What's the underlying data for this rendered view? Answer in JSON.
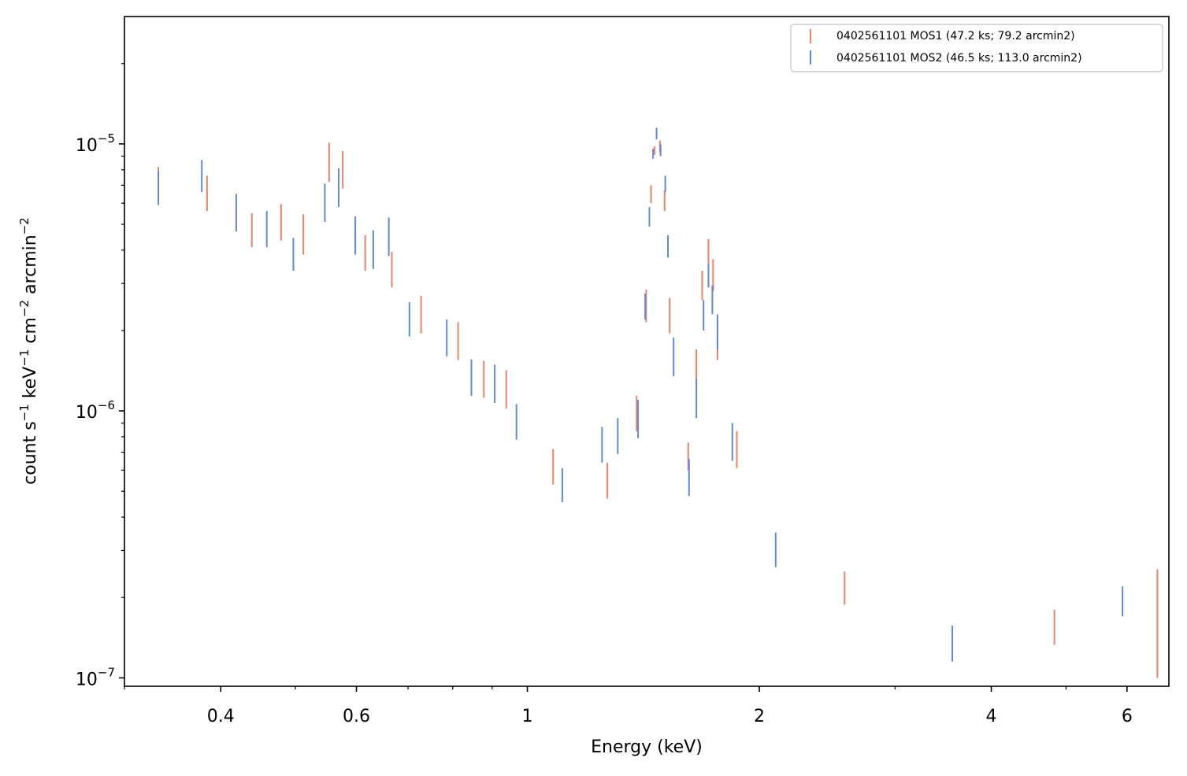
{
  "chart_data": {
    "type": "scatter",
    "title": "",
    "xlabel": "Energy (keV)",
    "ylabel_parts": {
      "p1": "count s",
      "e1": "−1",
      "p2": " keV",
      "e2": "−1",
      "p3": " cm",
      "e3": "−2",
      "p4": " arcmin",
      "e4": "−2"
    },
    "xscale": "log",
    "yscale": "log",
    "xlim": [
      0.3,
      6.8
    ],
    "ylim": [
      9.3e-08,
      3e-05
    ],
    "xticks": [
      {
        "value": 0.4,
        "label": "0.4"
      },
      {
        "value": 0.6,
        "label": "0.6"
      },
      {
        "value": 1,
        "label": "1"
      },
      {
        "value": 2,
        "label": "2"
      },
      {
        "value": 4,
        "label": "4"
      },
      {
        "value": 6,
        "label": "6"
      }
    ],
    "yticks": [
      {
        "value": 1e-07,
        "base": "10",
        "exp": "−7"
      },
      {
        "value": 1e-06,
        "base": "10",
        "exp": "−6"
      },
      {
        "value": 1e-05,
        "base": "10",
        "exp": "−5"
      }
    ],
    "legend": {
      "placement": "upper right"
    },
    "series": [
      {
        "name": "0402561101 MOS1 (47.2 ks; 79.2 arcmin2)",
        "color": "#f08068",
        "points": [
          {
            "x": 0.332,
            "lo": 6.1e-06,
            "hi": 8.2e-06
          },
          {
            "x": 0.384,
            "lo": 5.6e-06,
            "hi": 7.6e-06
          },
          {
            "x": 0.439,
            "lo": 4.1e-06,
            "hi": 5.5e-06
          },
          {
            "x": 0.479,
            "lo": 4.35e-06,
            "hi": 5.95e-06
          },
          {
            "x": 0.512,
            "lo": 3.85e-06,
            "hi": 5.45e-06
          },
          {
            "x": 0.553,
            "lo": 7.2e-06,
            "hi": 1.01e-05
          },
          {
            "x": 0.576,
            "lo": 6.8e-06,
            "hi": 9.4e-06
          },
          {
            "x": 0.616,
            "lo": 3.35e-06,
            "hi": 4.55e-06
          },
          {
            "x": 0.667,
            "lo": 2.9e-06,
            "hi": 3.95e-06
          },
          {
            "x": 0.728,
            "lo": 1.95e-06,
            "hi": 2.7e-06
          },
          {
            "x": 0.813,
            "lo": 1.55e-06,
            "hi": 2.15e-06
          },
          {
            "x": 0.878,
            "lo": 1.12e-06,
            "hi": 1.54e-06
          },
          {
            "x": 0.939,
            "lo": 1.02e-06,
            "hi": 1.42e-06
          },
          {
            "x": 1.08,
            "lo": 5.3e-07,
            "hi": 7.2e-07
          },
          {
            "x": 1.27,
            "lo": 4.7e-07,
            "hi": 6.4e-07
          },
          {
            "x": 1.386,
            "lo": 8.4e-07,
            "hi": 1.14e-06
          },
          {
            "x": 1.426,
            "lo": 2.15e-06,
            "hi": 2.85e-06
          },
          {
            "x": 1.447,
            "lo": 6e-06,
            "hi": 7e-06
          },
          {
            "x": 1.463,
            "lo": 9.1e-06,
            "hi": 9.8e-06
          },
          {
            "x": 1.486,
            "lo": 9.3e-06,
            "hi": 1.03e-05
          },
          {
            "x": 1.507,
            "lo": 5.6e-06,
            "hi": 6.7e-06
          },
          {
            "x": 1.53,
            "lo": 1.95e-06,
            "hi": 2.65e-06
          },
          {
            "x": 1.617,
            "lo": 6e-07,
            "hi": 7.6e-07
          },
          {
            "x": 1.657,
            "lo": 1.28e-06,
            "hi": 1.7e-06
          },
          {
            "x": 1.686,
            "lo": 2.6e-06,
            "hi": 3.35e-06
          },
          {
            "x": 1.718,
            "lo": 3.3e-06,
            "hi": 4.4e-06
          },
          {
            "x": 1.742,
            "lo": 2.8e-06,
            "hi": 3.7e-06
          },
          {
            "x": 1.765,
            "lo": 1.55e-06,
            "hi": 2.2e-06
          },
          {
            "x": 1.87,
            "lo": 6.1e-07,
            "hi": 8.4e-07
          },
          {
            "x": 2.58,
            "lo": 1.88e-07,
            "hi": 2.5e-07
          },
          {
            "x": 4.83,
            "lo": 1.33e-07,
            "hi": 1.8e-07
          },
          {
            "x": 6.57,
            "lo": 1e-07,
            "hi": 2.55e-07
          }
        ]
      },
      {
        "name": "0402561101 MOS2 (46.5 ks; 113.0 arcmin2)",
        "color": "#6088e0",
        "points": [
          {
            "x": 0.332,
            "lo": 5.9e-06,
            "hi": 7.9e-06
          },
          {
            "x": 0.378,
            "lo": 6.6e-06,
            "hi": 8.7e-06
          },
          {
            "x": 0.419,
            "lo": 4.7e-06,
            "hi": 6.5e-06
          },
          {
            "x": 0.459,
            "lo": 4.1e-06,
            "hi": 5.6e-06
          },
          {
            "x": 0.497,
            "lo": 3.35e-06,
            "hi": 4.45e-06
          },
          {
            "x": 0.546,
            "lo": 5.1e-06,
            "hi": 7.1e-06
          },
          {
            "x": 0.569,
            "lo": 5.8e-06,
            "hi": 8.1e-06
          },
          {
            "x": 0.598,
            "lo": 3.85e-06,
            "hi": 5.35e-06
          },
          {
            "x": 0.631,
            "lo": 3.4e-06,
            "hi": 4.75e-06
          },
          {
            "x": 0.661,
            "lo": 3.8e-06,
            "hi": 5.3e-06
          },
          {
            "x": 0.703,
            "lo": 1.9e-06,
            "hi": 2.55e-06
          },
          {
            "x": 0.786,
            "lo": 1.6e-06,
            "hi": 2.2e-06
          },
          {
            "x": 0.846,
            "lo": 1.14e-06,
            "hi": 1.56e-06
          },
          {
            "x": 0.907,
            "lo": 1.07e-06,
            "hi": 1.49e-06
          },
          {
            "x": 0.968,
            "lo": 7.8e-07,
            "hi": 1.06e-06
          },
          {
            "x": 1.11,
            "lo": 4.55e-07,
            "hi": 6.1e-07
          },
          {
            "x": 1.25,
            "lo": 6.4e-07,
            "hi": 8.7e-07
          },
          {
            "x": 1.31,
            "lo": 6.9e-07,
            "hi": 9.4e-07
          },
          {
            "x": 1.392,
            "lo": 7.9e-07,
            "hi": 1.1e-06
          },
          {
            "x": 1.422,
            "lo": 2.2e-06,
            "hi": 2.75e-06
          },
          {
            "x": 1.44,
            "lo": 4.9e-06,
            "hi": 5.8e-06
          },
          {
            "x": 1.456,
            "lo": 8.8e-06,
            "hi": 9.6e-06
          },
          {
            "x": 1.471,
            "lo": 1.04e-05,
            "hi": 1.15e-05
          },
          {
            "x": 1.489,
            "lo": 9e-06,
            "hi": 9.95e-06
          },
          {
            "x": 1.51,
            "lo": 6.6e-06,
            "hi": 7.6e-06
          },
          {
            "x": 1.522,
            "lo": 3.75e-06,
            "hi": 4.55e-06
          },
          {
            "x": 1.548,
            "lo": 1.35e-06,
            "hi": 1.88e-06
          },
          {
            "x": 1.621,
            "lo": 4.8e-07,
            "hi": 6.6e-07
          },
          {
            "x": 1.657,
            "lo": 9.4e-07,
            "hi": 1.32e-06
          },
          {
            "x": 1.693,
            "lo": 2e-06,
            "hi": 2.6e-06
          },
          {
            "x": 1.718,
            "lo": 2.9e-06,
            "hi": 3.55e-06
          },
          {
            "x": 1.738,
            "lo": 2.3e-06,
            "hi": 2.95e-06
          },
          {
            "x": 1.765,
            "lo": 1.7e-06,
            "hi": 2.3e-06
          },
          {
            "x": 1.845,
            "lo": 6.5e-07,
            "hi": 9e-07
          },
          {
            "x": 2.1,
            "lo": 2.6e-07,
            "hi": 3.5e-07
          },
          {
            "x": 3.56,
            "lo": 1.15e-07,
            "hi": 1.57e-07
          },
          {
            "x": 5.92,
            "lo": 1.7e-07,
            "hi": 2.2e-07
          }
        ]
      }
    ]
  }
}
